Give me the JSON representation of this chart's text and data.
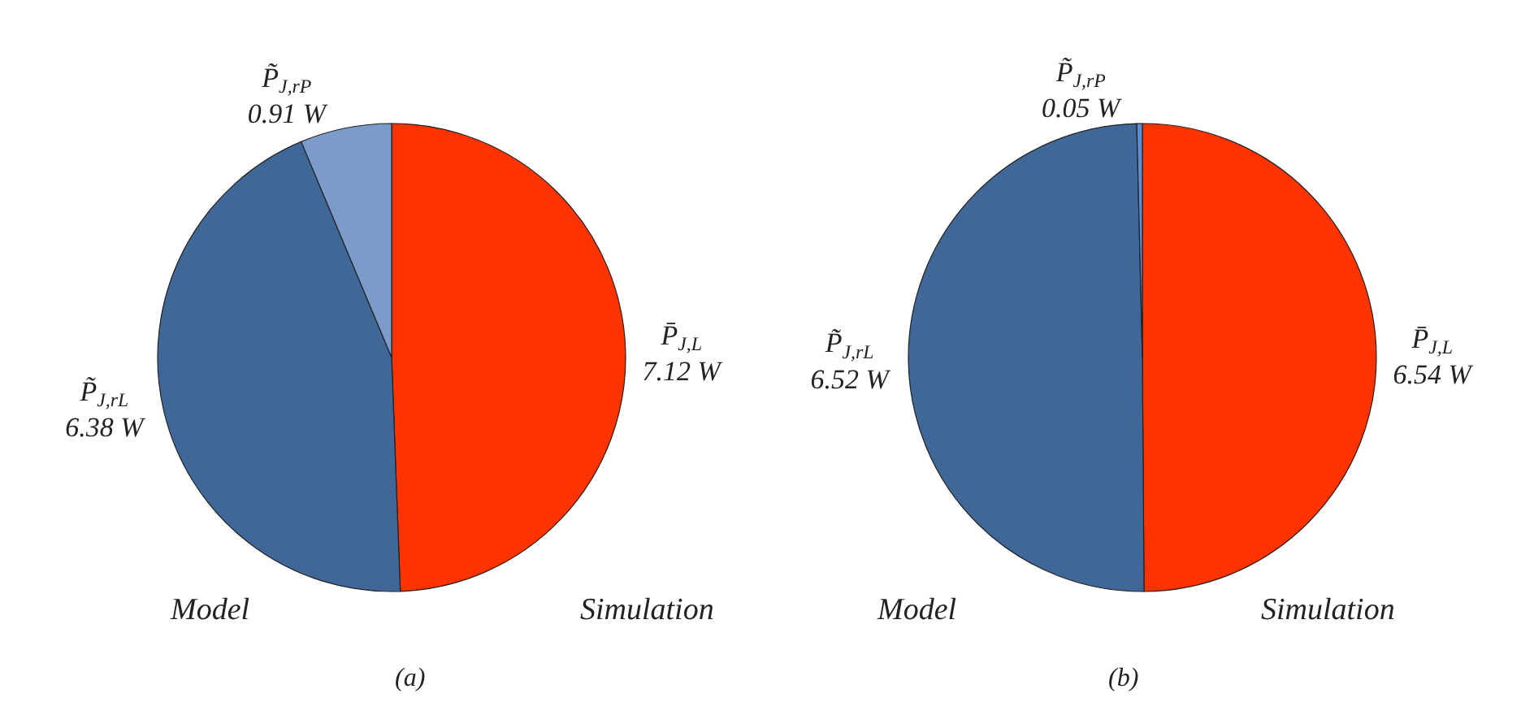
{
  "chart_data": [
    {
      "type": "pie",
      "categories": [
        "P̄$_{J,L}$",
        "P̃$_{J,rL}$",
        "P̃$_{J,rP}$"
      ],
      "values": [
        7.12,
        6.38,
        0.91
      ],
      "value_labels": [
        "7.12 W",
        "6.38 W",
        "0.91 W"
      ],
      "colors": [
        "#ff3300",
        "#3f6797",
        "#7b9bcb"
      ],
      "annotations": [
        "Model",
        "Simulation",
        "(a)"
      ],
      "legend": false
    },
    {
      "type": "pie",
      "categories": [
        "P̄$_{J,L}$",
        "P̃$_{J,rL}$",
        "P̃$_{J,rP}$"
      ],
      "values": [
        6.54,
        6.52,
        0.05
      ],
      "value_labels": [
        "6.54 W",
        "6.52 W",
        "0.05 W"
      ],
      "colors": [
        "#ff3300",
        "#3f6797",
        "#5b8fd6"
      ],
      "annotations": [
        "Model",
        "Simulation",
        "(b)"
      ],
      "legend": false
    }
  ]
}
